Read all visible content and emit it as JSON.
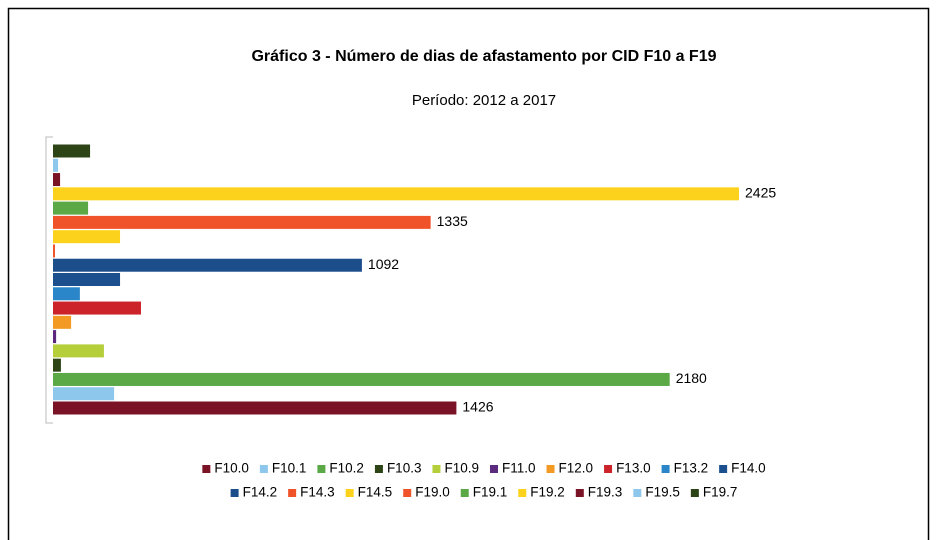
{
  "chart_data": {
    "type": "barh",
    "title": "Gráfico 3 - Número de dias de afastamento por CID F10 a F19",
    "subtitle": "Período: 2012 a 2017",
    "series": [
      {
        "name": "F10.0",
        "color": "#7b1326",
        "values": [
          1426
        ],
        "label": true
      },
      {
        "name": "F10.1",
        "color": "#8dc8ec",
        "values": [
          216
        ]
      },
      {
        "name": "F10.2",
        "color": "#5aa846",
        "values": [
          2180
        ],
        "label": true
      },
      {
        "name": "F10.3",
        "color": "#2d4516",
        "values": [
          28
        ]
      },
      {
        "name": "F10.9",
        "color": "#b5cf3a",
        "values": [
          180
        ]
      },
      {
        "name": "F11.0",
        "color": "#5b2a7c",
        "values": [
          11
        ]
      },
      {
        "name": "F12.0",
        "color": "#f39a25",
        "values": [
          64
        ]
      },
      {
        "name": "F13.0",
        "color": "#cc2229",
        "values": [
          311
        ]
      },
      {
        "name": "F13.2",
        "color": "#2a86c8",
        "values": [
          95
        ]
      },
      {
        "name": "F14.0",
        "color": "#1b4f8e",
        "values": [
          237
        ]
      },
      {
        "name": "F14.2",
        "color": "#1c4e8c",
        "values": [
          1092
        ],
        "label": true
      },
      {
        "name": "F14.3",
        "color": "#f0532a",
        "values": [
          7
        ]
      },
      {
        "name": "F14.5",
        "color": "#fcd21c",
        "values": [
          237
        ]
      },
      {
        "name": "F19.0",
        "color": "#f0532a",
        "values": [
          1335
        ],
        "label": true
      },
      {
        "name": "F19.1",
        "color": "#5aa846",
        "values": [
          124
        ]
      },
      {
        "name": "F19.2",
        "color": "#fcd21c",
        "values": [
          2425
        ],
        "label": true
      },
      {
        "name": "F19.3",
        "color": "#7b1326",
        "values": [
          25
        ]
      },
      {
        "name": "F19.5",
        "color": "#8dc8ec",
        "values": [
          18
        ]
      },
      {
        "name": "F19.7",
        "color": "#2d4516",
        "values": [
          131
        ]
      }
    ]
  }
}
